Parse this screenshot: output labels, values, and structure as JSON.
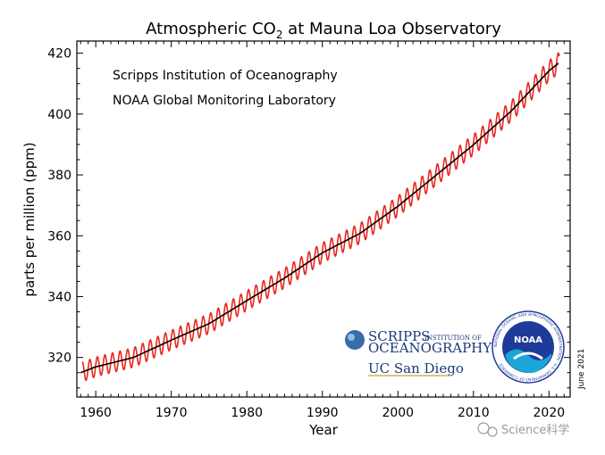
{
  "chart_data": {
    "type": "line",
    "title_main": "Atmospheric CO",
    "title_sub": "2",
    "title_rest": " at Mauna Loa Observatory",
    "xlabel": "Year",
    "ylabel": "parts per million (ppm)",
    "xlim": [
      1957.5,
      2022.8
    ],
    "ylim": [
      307,
      424
    ],
    "xticks": [
      1960,
      1970,
      1980,
      1990,
      2000,
      2010,
      2020
    ],
    "yticks": [
      320,
      340,
      360,
      380,
      400,
      420
    ],
    "credits": [
      "Scripps Institution of Oceanography",
      "NOAA Global Monitoring Laboratory"
    ],
    "date_note": "June 2021",
    "series": [
      {
        "name": "",
        "role": "monthly mean (seasonal cycle)",
        "color": "#e8281e",
        "seasonal_amplitude_ppm": 3.2,
        "x_range": [
          1958.2,
          2021.4
        ]
      },
      {
        "name": "",
        "role": "seasonally adjusted trend",
        "color": "#000000",
        "x": [
          1958,
          1960,
          1965,
          1970,
          1975,
          1980,
          1985,
          1990,
          1995,
          2000,
          2005,
          2010,
          2015,
          2020,
          2021.4
        ],
        "y": [
          315.0,
          316.9,
          320.0,
          325.7,
          331.1,
          338.7,
          346.1,
          354.4,
          360.8,
          369.7,
          379.8,
          389.9,
          401.0,
          414.2,
          417.0
        ]
      }
    ]
  },
  "logos": {
    "scripps_line1": "SCRIPPS",
    "scripps_inst": "INSTITUTION OF",
    "scripps_line2": "OCEANOGRAPHY",
    "ucsd": "UC San Diego",
    "noaa": "NOAA",
    "noaa_ring": "NATIONAL OCEANIC AND ATMOSPHERIC ADMINISTRATION · U.S. DEPARTMENT OF COMMERCE"
  },
  "watermark": "Science科学",
  "colors": {
    "monthly": "#e8281e",
    "trend": "#000000",
    "noaa_blue": "#1f3b9a",
    "scripps_blue": "#1a3a7a"
  }
}
